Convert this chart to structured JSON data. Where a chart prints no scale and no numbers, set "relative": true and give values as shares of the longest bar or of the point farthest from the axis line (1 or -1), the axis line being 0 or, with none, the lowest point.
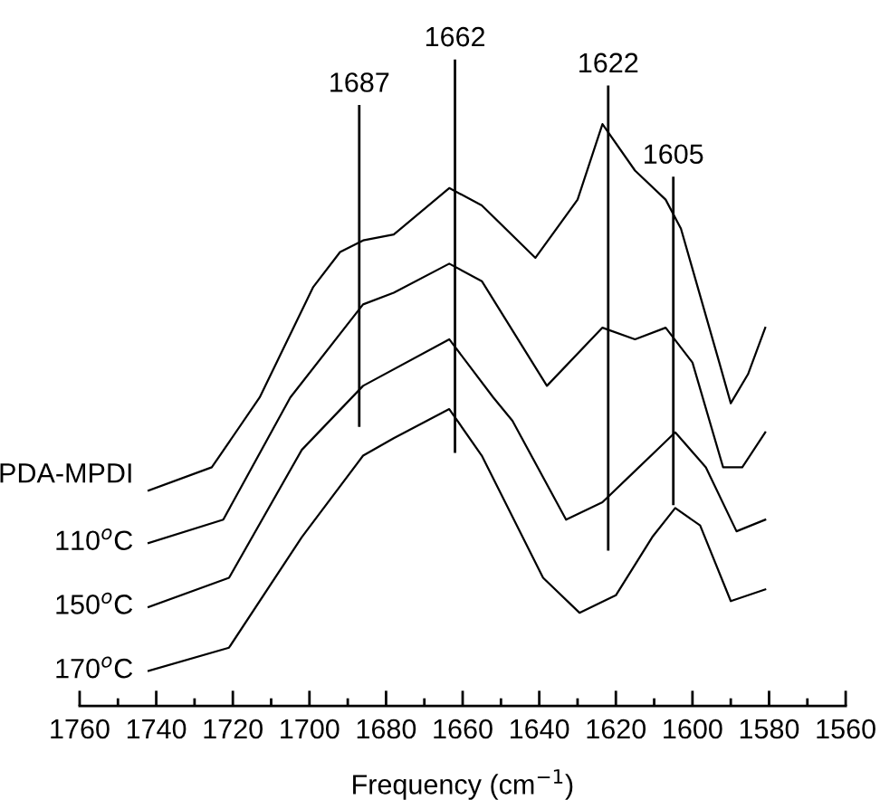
{
  "chart_data": {
    "type": "line",
    "relative": true,
    "xlabel": "Frequency (cm$^{−1}$)",
    "xlim": [
      1760,
      1560
    ],
    "xticks": [
      1760,
      1740,
      1720,
      1700,
      1680,
      1660,
      1640,
      1620,
      1600,
      1580,
      1560
    ],
    "grid": false,
    "legend": false,
    "marker": "none",
    "line_style": "solid",
    "series": [
      {
        "name": "PDA-MPDI",
        "color": "#000000",
        "x": [
          1742,
          1725.5,
          1713,
          1699,
          1692,
          1686,
          1678,
          1663.5,
          1655,
          1641,
          1630,
          1623.5,
          1615,
          1607,
          1603,
          1593,
          1590,
          1585.5,
          1581
        ],
        "values": [
          0.37,
          0.41,
          0.53,
          0.72,
          0.78,
          0.8,
          0.81,
          0.89,
          0.86,
          0.77,
          0.87,
          1.0,
          0.92,
          0.87,
          0.82,
          0.59,
          0.52,
          0.57,
          0.65
        ]
      },
      {
        "name": "110$^{o}$C",
        "color": "#000000",
        "x": [
          1742,
          1722.5,
          1705,
          1686,
          1678,
          1663.5,
          1655,
          1638,
          1623.5,
          1615,
          1607,
          1600,
          1592,
          1587,
          1581
        ],
        "values": [
          0.28,
          0.32,
          0.53,
          0.69,
          0.71,
          0.76,
          0.73,
          0.55,
          0.65,
          0.63,
          0.65,
          0.59,
          0.41,
          0.41,
          0.47
        ]
      },
      {
        "name": "150$^{o}$C",
        "color": "#000000",
        "x": [
          1742,
          1721,
          1702,
          1686,
          1663.5,
          1652,
          1647,
          1633,
          1623.5,
          1614,
          1604.5,
          1596.5,
          1588.5,
          1581
        ],
        "values": [
          0.17,
          0.22,
          0.44,
          0.55,
          0.63,
          0.53,
          0.49,
          0.32,
          0.35,
          0.41,
          0.47,
          0.41,
          0.3,
          0.32
        ]
      },
      {
        "name": "170$^{o}$C",
        "color": "#000000",
        "x": [
          1742,
          1721,
          1702,
          1686,
          1678,
          1663.5,
          1655,
          1639,
          1629.5,
          1620,
          1610.5,
          1604.5,
          1598,
          1590,
          1581
        ],
        "values": [
          0.06,
          0.1,
          0.29,
          0.43,
          0.46,
          0.51,
          0.43,
          0.22,
          0.16,
          0.19,
          0.29,
          0.34,
          0.31,
          0.18,
          0.2
        ]
      }
    ],
    "ref_lines": [
      {
        "axis": "x",
        "value": 1687,
        "label": "1687",
        "color": "#000000"
      },
      {
        "axis": "x",
        "value": 1662,
        "label": "1662",
        "color": "#000000"
      },
      {
        "axis": "x",
        "value": 1622,
        "label": "1622",
        "color": "#000000"
      },
      {
        "axis": "x",
        "value": 1605,
        "label": "1605",
        "color": "#000000"
      }
    ]
  }
}
